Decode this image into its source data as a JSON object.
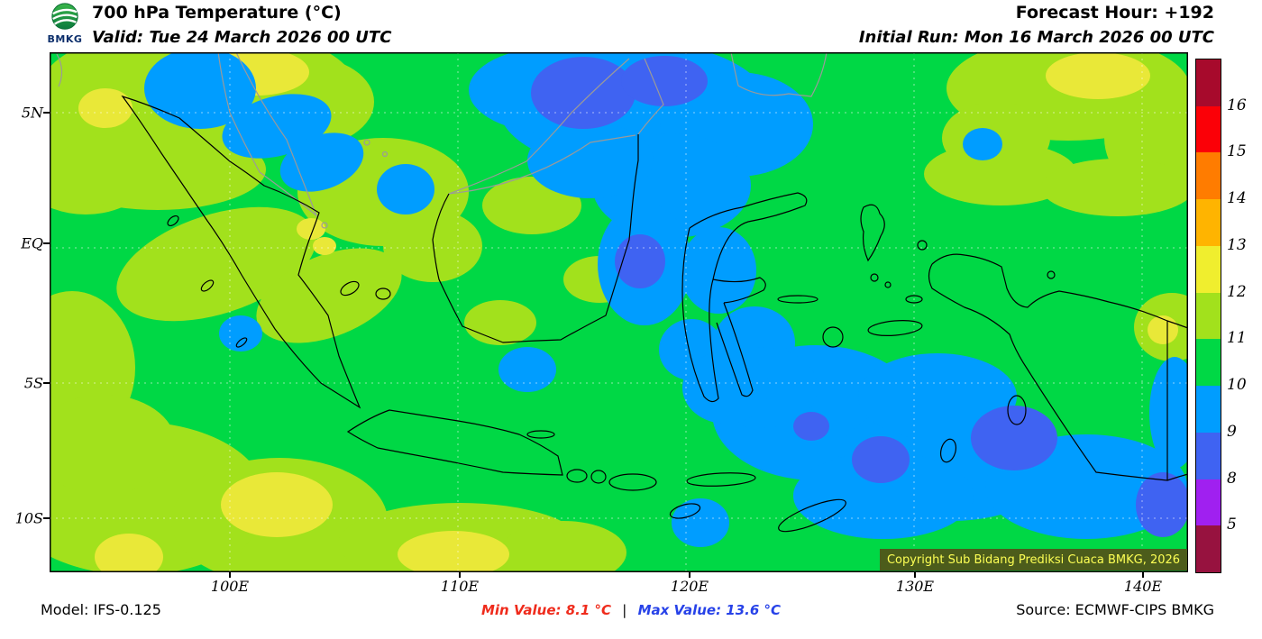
{
  "header": {
    "logo_label": "BMKG",
    "title": "700 hPa Temperature (°C)",
    "valid": "Valid: Tue 24 March 2026 00 UTC",
    "forecast_hour": "Forecast Hour: +192",
    "initial_run": "Initial Run: Mon 16 March 2026 00 UTC"
  },
  "map": {
    "lat_labels": [
      "5N",
      "EQ",
      "5S",
      "10S"
    ],
    "lon_labels": [
      "100E",
      "110E",
      "120E",
      "130E",
      "140E"
    ],
    "copyright": "Copyright Sub Bidang Prediksi Cuaca BMKG, 2026",
    "field_colors": {
      "green_10_11": "#00d845",
      "yellow_green_11_12": "#a2e11c",
      "yellow_12_13": "#e9e838",
      "light_blue_9_10": "#009dff",
      "blue_8_9": "#3f63f2"
    }
  },
  "colorbar": {
    "tick_labels": [
      "16",
      "15",
      "14",
      "13",
      "12",
      "11",
      "10",
      "9",
      "8",
      "5"
    ],
    "segments": [
      "#a70a2c",
      "#fb0007",
      "#ff7c00",
      "#ffb400",
      "#f0ee2e",
      "#a2e11c",
      "#00d845",
      "#009dff",
      "#3f63f2",
      "#a020f0",
      "#97123f"
    ]
  },
  "footer": {
    "model": "Model: IFS-0.125",
    "min_label": "Min Value: 8.1 °C",
    "separator": "|",
    "max_label": "Max Value: 13.6 °C",
    "source": "Source: ECMWF-CIPS BMKG"
  }
}
